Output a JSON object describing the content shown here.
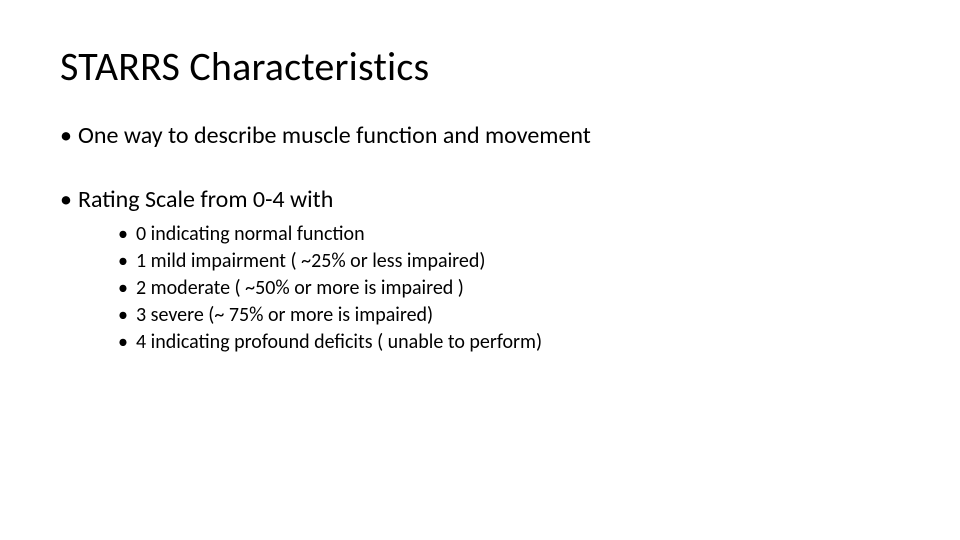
{
  "colors": {
    "background": "#ffffff",
    "text": "#000000"
  },
  "typography": {
    "font_family": "Calibri",
    "title_fontsize_pt": 30,
    "body_fontsize_pt": 18,
    "sub_fontsize_pt": 15
  },
  "title": "STARRS Characteristics",
  "bullets": [
    {
      "text": "One way to describe muscle function and movement",
      "sub": []
    },
    {
      "text": "Rating Scale from 0-4 with",
      "sub": [
        "0 indicating normal function",
        "1 mild impairment (  ~25% or less impaired)",
        "2 moderate ( ~50% or more is impaired )",
        "3 severe (~ 75%  or more is impaired)",
        "4 indicating profound deficits ( unable to perform)"
      ]
    }
  ]
}
